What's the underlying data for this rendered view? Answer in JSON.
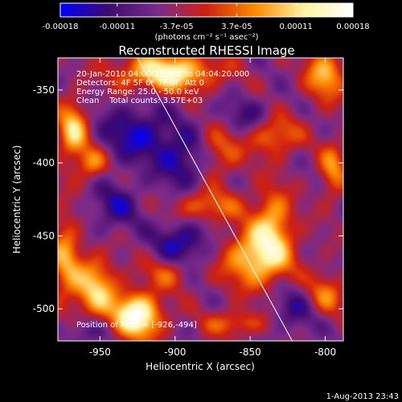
{
  "chart_data": {
    "type": "heatmap",
    "title": "Reconstructed RHESSI Image",
    "xlabel": "Heliocentric X (arcsec)",
    "ylabel": "Heliocentric Y (arcsec)",
    "xlim": [
      -978,
      -788
    ],
    "ylim": [
      -522,
      -328
    ],
    "x_ticks": [
      "-950",
      "-900",
      "-850",
      "-800"
    ],
    "x_tick_values": [
      -950,
      -900,
      -850,
      -800
    ],
    "y_ticks": [
      "-350",
      "-400",
      "-450",
      "-500"
    ],
    "y_tick_values": [
      -350,
      -400,
      -450,
      -500
    ],
    "colorbar": {
      "range": [
        -0.00018,
        0.00018
      ],
      "tick_labels": [
        "-0.00018",
        "-0.00011",
        "-3.7e-05",
        "3.7e-05",
        "0.00011",
        "0.00018"
      ],
      "tick_values": [
        -0.00018,
        -0.00011,
        -3.7e-05,
        3.7e-05,
        0.00011,
        0.00018
      ],
      "unit_label": "(photons cm⁻² s⁻¹ asec⁻²)",
      "colors": [
        "#0000ff",
        "#3f0a6e",
        "#7a2b8c",
        "#d02010",
        "#ff8a00",
        "#fff3a0",
        "#ffffff"
      ]
    },
    "annotations": [
      "20-Jan-2010 04:00:16.000 to 04:04:20.000",
      "Detectors: 4F 5F 6F 7F 8F, Att 0",
      "Energy Range: 25.0 - 50.0 keV",
      "Clean    Total counts: 3.57E+03"
    ],
    "peak_label": "Position of Peak = [-926,-494]",
    "peak_position": [
      -926,
      -494
    ],
    "limb_line": [
      [
        -925,
        -328
      ],
      [
        -822,
        -522
      ]
    ],
    "hot_spots": [
      {
        "x": -925,
        "y": -505,
        "v": 1.0,
        "sx": 11,
        "sy": 11
      },
      {
        "x": -953,
        "y": -487,
        "v": 0.65,
        "sx": 10,
        "sy": 16
      },
      {
        "x": -973,
        "y": -465,
        "v": 0.5,
        "sx": 7,
        "sy": 22
      },
      {
        "x": -905,
        "y": -338,
        "v": 0.85,
        "sx": 22,
        "sy": 9
      },
      {
        "x": -968,
        "y": -378,
        "v": 0.7,
        "sx": 7,
        "sy": 14
      },
      {
        "x": -955,
        "y": -400,
        "v": 0.5,
        "sx": 7,
        "sy": 8
      },
      {
        "x": -845,
        "y": -465,
        "v": 0.75,
        "sx": 16,
        "sy": 14
      },
      {
        "x": -835,
        "y": -440,
        "v": 0.55,
        "sx": 9,
        "sy": 16
      },
      {
        "x": -835,
        "y": -380,
        "v": 0.55,
        "sx": 12,
        "sy": 10
      },
      {
        "x": -800,
        "y": -340,
        "v": 0.6,
        "sx": 9,
        "sy": 12
      },
      {
        "x": -880,
        "y": -430,
        "v": 0.45,
        "sx": 16,
        "sy": 8
      },
      {
        "x": -870,
        "y": -390,
        "v": 0.4,
        "sx": 10,
        "sy": 14
      },
      {
        "x": -795,
        "y": -405,
        "v": 0.45,
        "sx": 6,
        "sy": 14
      },
      {
        "x": -860,
        "y": -510,
        "v": 0.4,
        "sx": 14,
        "sy": 6
      },
      {
        "x": -800,
        "y": -490,
        "v": 0.45,
        "sx": 9,
        "sy": 10
      },
      {
        "x": -905,
        "y": -475,
        "v": 0.35,
        "sx": 12,
        "sy": 8
      }
    ],
    "cold_spots": [
      {
        "x": -925,
        "y": -380,
        "v": -0.45,
        "sx": 18,
        "sy": 14
      },
      {
        "x": -895,
        "y": -455,
        "v": -0.45,
        "sx": 14,
        "sy": 12
      },
      {
        "x": -895,
        "y": -400,
        "v": -0.4,
        "sx": 12,
        "sy": 14
      },
      {
        "x": -852,
        "y": -370,
        "v": -0.35,
        "sx": 16,
        "sy": 10
      },
      {
        "x": -940,
        "y": -430,
        "v": -0.35,
        "sx": 12,
        "sy": 12
      },
      {
        "x": -820,
        "y": -500,
        "v": -0.3,
        "sx": 12,
        "sy": 12
      },
      {
        "x": -960,
        "y": -515,
        "v": -0.3,
        "sx": 12,
        "sy": 8
      }
    ]
  },
  "footer": {
    "timestamp": "1-Aug-2013 23:43"
  }
}
